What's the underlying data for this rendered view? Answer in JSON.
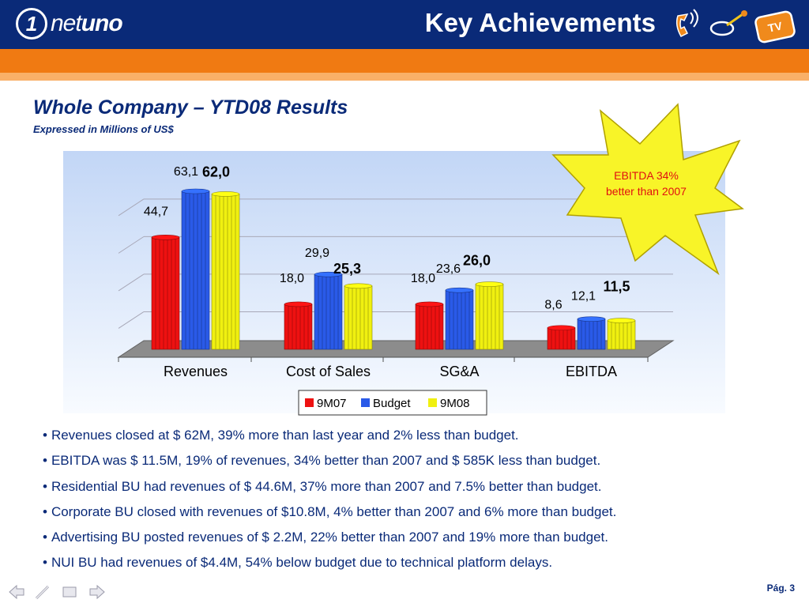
{
  "header": {
    "logo_numeral": "1",
    "logo_net": "net",
    "logo_uno": "uno",
    "title": "Key Achievements",
    "tv_badge": "TV",
    "icons": [
      "phone-icon",
      "internet-icon",
      "tv-icon"
    ]
  },
  "section": {
    "title": "Whole Company – YTD08 Results",
    "subtitle": "Expressed in Millions of US$"
  },
  "callout": {
    "line1": "EBITDA  34%",
    "line2": "better than 2007"
  },
  "chart_data": {
    "type": "bar",
    "categories": [
      "Revenues",
      "Cost of Sales",
      "SG&A",
      "EBITDA"
    ],
    "series": [
      {
        "name": "9M07",
        "color": "#ee1111",
        "values": [
          44.7,
          18.0,
          18.0,
          8.6
        ],
        "labels": [
          "44,7",
          "18,0",
          "18,0",
          "8,6"
        ]
      },
      {
        "name": "Budget",
        "color": "#2a5ae8",
        "values": [
          63.1,
          29.9,
          23.6,
          12.1
        ],
        "labels": [
          "63,1",
          "29,9",
          "23,6",
          "12,1"
        ]
      },
      {
        "name": "9M08",
        "color": "#f0f010",
        "values": [
          62.0,
          25.3,
          26.0,
          11.5
        ],
        "labels": [
          "62,0",
          "25,3",
          "26,0",
          "11,5"
        ]
      }
    ],
    "ylim": [
      0,
      70
    ],
    "grid": true,
    "legend": "bottom"
  },
  "bullets": [
    "Revenues closed at $ 62M, 39% more than last year and 2% less than budget.",
    "EBITDA was $ 11.5M, 19% of revenues, 34% better than 2007 and $ 585K less than budget.",
    "Residential BU had revenues of $ 44.6M, 37% more than 2007 and 7.5% better than budget.",
    "Corporate BU closed with revenues of $10.8M, 4% better than 2007 and 6% more than budget.",
    "Advertising BU posted revenues of $ 2.2M, 22% better than 2007 and 19% more than budget.",
    "NUI BU had revenues of $4.4M, 54% below budget due to technical platform delays."
  ],
  "footer": {
    "page": "Pág. 3",
    "nav": [
      "back-arrow-icon",
      "pen-icon",
      "screen-icon",
      "forward-arrow-icon"
    ]
  }
}
